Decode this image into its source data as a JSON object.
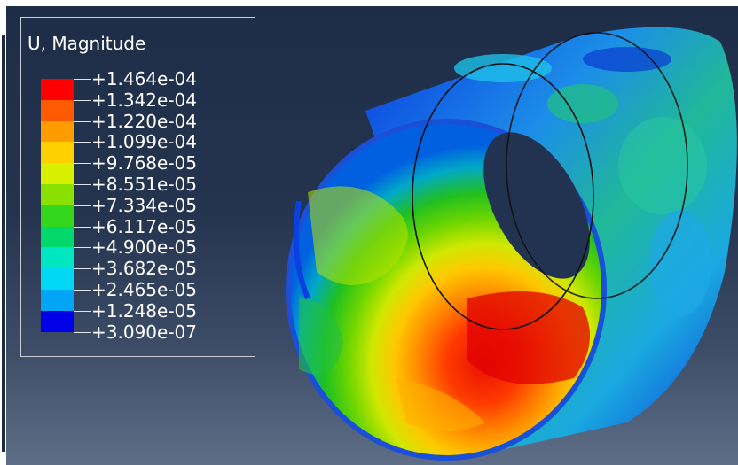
{
  "legend": {
    "title": "U, Magnitude",
    "entries": [
      {
        "label": "+1.464e-04",
        "color": "#ff0000"
      },
      {
        "label": "+1.342e-04",
        "color": "#ff5a00"
      },
      {
        "label": "+1.220e-04",
        "color": "#ff9c00"
      },
      {
        "label": "+1.099e-04",
        "color": "#ffd000"
      },
      {
        "label": "+9.768e-05",
        "color": "#d8f000"
      },
      {
        "label": "+8.551e-05",
        "color": "#8ae000"
      },
      {
        "label": "+7.334e-05",
        "color": "#33d61a"
      },
      {
        "label": "+6.117e-05",
        "color": "#00d86a"
      },
      {
        "label": "+4.900e-05",
        "color": "#00e6c0"
      },
      {
        "label": "+3.682e-05",
        "color": "#00d8f6"
      },
      {
        "label": "+2.465e-05",
        "color": "#00a6f5"
      },
      {
        "label": "+1.248e-05",
        "color": "#0050f0"
      },
      {
        "label": "+3.090e-07",
        "color": "#0000e8"
      }
    ]
  }
}
